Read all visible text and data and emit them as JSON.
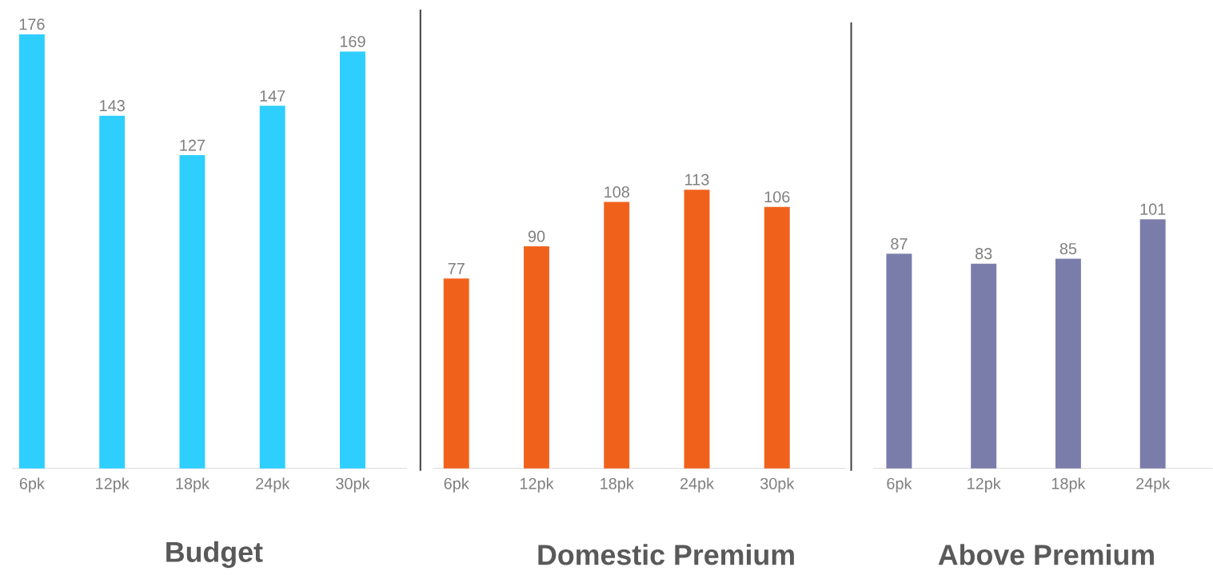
{
  "chart_data": [
    {
      "type": "bar",
      "title": "Budget",
      "categories": [
        "6pk",
        "12pk",
        "18pk",
        "24pk",
        "30pk"
      ],
      "values": [
        176,
        143,
        127,
        147,
        169
      ],
      "color": "#2ecfff",
      "data_labels": true
    },
    {
      "type": "bar",
      "title": "Domestic Premium",
      "categories": [
        "6pk",
        "12pk",
        "18pk",
        "24pk",
        "30pk"
      ],
      "values": [
        77,
        90,
        108,
        113,
        106
      ],
      "color": "#f0621c",
      "data_labels": true
    },
    {
      "type": "bar",
      "title": "Above Premium",
      "categories": [
        "6pk",
        "12pk",
        "18pk",
        "24pk"
      ],
      "values": [
        87,
        83,
        85,
        101
      ],
      "color": "#7a7daa",
      "data_labels": true
    }
  ]
}
